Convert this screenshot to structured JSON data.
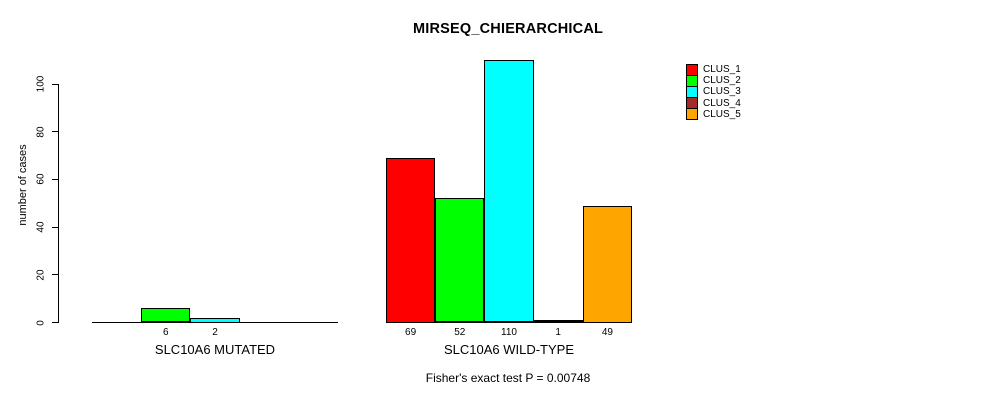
{
  "chart_data": {
    "type": "bar",
    "title": "MIRSEQ_CHIERARCHICAL",
    "ylabel": "number of cases",
    "xlabel": "",
    "ylim": [
      0,
      110
    ],
    "yticks": [
      0,
      20,
      40,
      60,
      80,
      100
    ],
    "grid": false,
    "legend_position": "top-right",
    "series": [
      "CLUS_1",
      "CLUS_2",
      "CLUS_3",
      "CLUS_4",
      "CLUS_5"
    ],
    "colors": [
      "#FF0000",
      "#00FF00",
      "#00FFFF",
      "#A52A2A",
      "#FFA500"
    ],
    "groups": [
      {
        "label": "SLC10A6 MUTATED",
        "values": [
          0,
          6,
          2,
          0,
          0
        ]
      },
      {
        "label": "SLC10A6 WILD-TYPE",
        "values": [
          69,
          52,
          110,
          1,
          49
        ]
      }
    ],
    "value_labels": [
      [
        "",
        "6",
        "2",
        "",
        ""
      ],
      [
        "69",
        "52",
        "110",
        "1",
        "49"
      ]
    ],
    "annotation": "Fisher's exact test P = 0.00748"
  }
}
